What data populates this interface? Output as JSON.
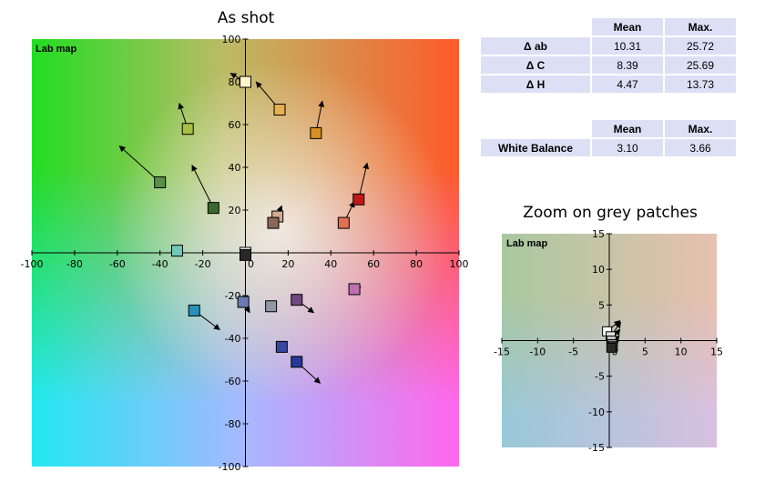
{
  "tables": [
    {
      "columns": [
        "",
        "Mean",
        "Max."
      ],
      "rows": [
        {
          "label": "Δ ab",
          "mean": "10.31",
          "max": "25.72"
        },
        {
          "label": "Δ C",
          "mean": "8.39",
          "max": "25.69"
        },
        {
          "label": "Δ H",
          "mean": "4.47",
          "max": "13.73"
        }
      ]
    },
    {
      "columns": [
        "",
        "Mean",
        "Max."
      ],
      "rows": [
        {
          "label": "White Balance",
          "mean": "3.10",
          "max": "3.66"
        }
      ]
    }
  ],
  "chart_data": [
    {
      "type": "scatter",
      "title": "As shot",
      "corner_label": "Lab map",
      "xlim": [
        -100,
        100
      ],
      "ylim": [
        -100,
        100
      ],
      "xticks": [
        -100,
        -80,
        -60,
        -40,
        -20,
        0,
        20,
        40,
        60,
        80,
        100
      ],
      "yticks": [
        -100,
        -80,
        -60,
        -40,
        -20,
        20,
        40,
        60,
        80,
        100
      ],
      "grid": false,
      "points": [
        {
          "x": 0,
          "y": 80,
          "dx": -7,
          "dy": 4,
          "color": "#fff3c8"
        },
        {
          "x": 16,
          "y": 67,
          "dx": -11,
          "dy": 13,
          "color": "#e8b050"
        },
        {
          "x": 33,
          "y": 56,
          "dx": 3,
          "dy": 15,
          "color": "#d89020"
        },
        {
          "x": -27,
          "y": 58,
          "dx": -4,
          "dy": 12,
          "color": "#a8c040"
        },
        {
          "x": -40,
          "y": 33,
          "dx": -19,
          "dy": 17,
          "color": "#58904a"
        },
        {
          "x": -15,
          "y": 21,
          "dx": -10,
          "dy": 20,
          "color": "#3a6a30"
        },
        {
          "x": 53,
          "y": 25,
          "dx": 4,
          "dy": 17,
          "color": "#c01818"
        },
        {
          "x": 46,
          "y": 14,
          "dx": 5,
          "dy": 10,
          "color": "#e07050"
        },
        {
          "x": 15,
          "y": 17,
          "dx": 2,
          "dy": 5,
          "color": "#d4a890"
        },
        {
          "x": 13,
          "y": 14,
          "dx": 3,
          "dy": 6,
          "color": "#8a6858"
        },
        {
          "x": -32,
          "y": 1,
          "dx": 0,
          "dy": 0,
          "color": "#70c8b8"
        },
        {
          "x": 0,
          "y": 0,
          "dx": 0,
          "dy": 0,
          "color": "#ffffff"
        },
        {
          "x": 0,
          "y": -1,
          "dx": 0,
          "dy": 0,
          "color": "#282828"
        },
        {
          "x": 51,
          "y": -17,
          "dx": 3,
          "dy": 1,
          "color": "#c070b0"
        },
        {
          "x": 24,
          "y": -22,
          "dx": 8,
          "dy": -6,
          "color": "#704880"
        },
        {
          "x": 12,
          "y": -25,
          "dx": 0,
          "dy": 0,
          "color": "#9098a8"
        },
        {
          "x": -1,
          "y": -23,
          "dx": 3,
          "dy": -5,
          "color": "#6a7ab0"
        },
        {
          "x": -24,
          "y": -27,
          "dx": 12,
          "dy": -9,
          "color": "#2890b8"
        },
        {
          "x": 17,
          "y": -44,
          "dx": 0,
          "dy": 0,
          "color": "#3848a0"
        },
        {
          "x": 24,
          "y": -51,
          "dx": 11,
          "dy": -10,
          "color": "#283898"
        }
      ]
    },
    {
      "type": "scatter",
      "title": "Zoom on grey patches",
      "corner_label": "Lab map",
      "xlim": [
        -15,
        15
      ],
      "ylim": [
        -15,
        15
      ],
      "xticks": [
        -15,
        -10,
        -5,
        0,
        5,
        10,
        15
      ],
      "yticks": [
        -15,
        -10,
        -5,
        5,
        10,
        15
      ],
      "grid": false,
      "points": [
        {
          "x": -0.3,
          "y": 1.3,
          "dx": 1.8,
          "dy": 1.5,
          "color": "#ffffff"
        },
        {
          "x": 0.2,
          "y": 0.6,
          "dx": 1.4,
          "dy": 2.0,
          "color": "#e0e0e0"
        },
        {
          "x": 0.3,
          "y": 0.0,
          "dx": 1.2,
          "dy": 1.6,
          "color": "#c8c8c8"
        },
        {
          "x": 0.4,
          "y": -0.5,
          "dx": 1.0,
          "dy": 1.2,
          "color": "#9a9a9a"
        },
        {
          "x": 0.5,
          "y": -0.8,
          "dx": 0.8,
          "dy": 0.8,
          "color": "#505050"
        },
        {
          "x": 0.3,
          "y": -1.0,
          "dx": 0.5,
          "dy": 0.5,
          "color": "#282828"
        }
      ]
    }
  ]
}
